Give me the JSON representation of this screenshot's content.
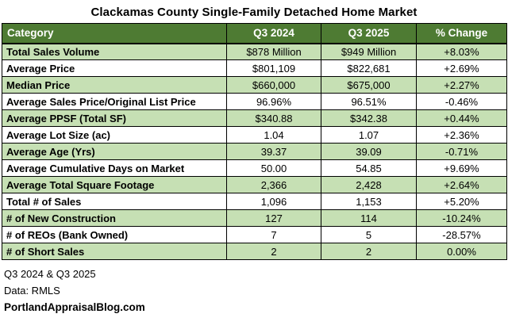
{
  "title": "Clackamas County Single-Family Detached Home Market",
  "colors": {
    "header_bg": "#4E7B33",
    "header_text": "#FFFFFF",
    "row_alt_bg": "#C6E0B4",
    "row_bg": "#FFFFFF",
    "border": "#000000"
  },
  "table": {
    "headers": [
      "Category",
      "Q3 2024",
      "Q3 2025",
      "% Change"
    ],
    "rows": [
      {
        "category": "Total Sales Volume",
        "q3_2024": "$878 Million",
        "q3_2025": "$949 Million",
        "change": "+8.03%"
      },
      {
        "category": "Average Price",
        "q3_2024": "$801,109",
        "q3_2025": "$822,681",
        "change": "+2.69%"
      },
      {
        "category": "Median Price",
        "q3_2024": "$660,000",
        "q3_2025": "$675,000",
        "change": "+2.27%"
      },
      {
        "category": "Average Sales Price/Original List Price",
        "q3_2024": "96.96%",
        "q3_2025": "96.51%",
        "change": "-0.46%"
      },
      {
        "category": "Average PPSF (Total SF)",
        "q3_2024": "$340.88",
        "q3_2025": "$342.38",
        "change": "+0.44%"
      },
      {
        "category": "Average Lot Size (ac)",
        "q3_2024": "1.04",
        "q3_2025": "1.07",
        "change": "+2.36%"
      },
      {
        "category": "Average Age (Yrs)",
        "q3_2024": "39.37",
        "q3_2025": "39.09",
        "change": "-0.71%"
      },
      {
        "category": "Average Cumulative Days on Market",
        "q3_2024": "50.00",
        "q3_2025": "54.85",
        "change": "+9.69%"
      },
      {
        "category": "Average Total Square Footage",
        "q3_2024": "2,366",
        "q3_2025": "2,428",
        "change": "+2.64%"
      },
      {
        "category": "Total # of Sales",
        "q3_2024": "1,096",
        "q3_2025": "1,153",
        "change": "+5.20%"
      },
      {
        "category": "# of New Construction",
        "q3_2024": "127",
        "q3_2025": "114",
        "change": "-10.24%"
      },
      {
        "category": "# of REOs (Bank Owned)",
        "q3_2024": "7",
        "q3_2025": "5",
        "change": "-28.57%"
      },
      {
        "category": "# of Short Sales",
        "q3_2024": "2",
        "q3_2025": "2",
        "change": "0.00%"
      }
    ]
  },
  "footer": {
    "line1": "Q3 2024 & Q3 2025",
    "line2": "Data: RMLS",
    "line3": "PortlandAppraisalBlog.com"
  },
  "chart_data": {
    "type": "table",
    "title": "Clackamas County Single-Family Detached Home Market",
    "columns": [
      "Category",
      "Q3 2024",
      "Q3 2025",
      "% Change"
    ],
    "rows": [
      [
        "Total Sales Volume",
        "$878 Million",
        "$949 Million",
        "+8.03%"
      ],
      [
        "Average Price",
        "$801,109",
        "$822,681",
        "+2.69%"
      ],
      [
        "Median Price",
        "$660,000",
        "$675,000",
        "+2.27%"
      ],
      [
        "Average Sales Price/Original List Price",
        "96.96%",
        "96.51%",
        "-0.46%"
      ],
      [
        "Average PPSF (Total SF)",
        "$340.88",
        "$342.38",
        "+0.44%"
      ],
      [
        "Average Lot Size (ac)",
        "1.04",
        "1.07",
        "+2.36%"
      ],
      [
        "Average Age (Yrs)",
        "39.37",
        "39.09",
        "-0.71%"
      ],
      [
        "Average Cumulative Days on Market",
        "50.00",
        "54.85",
        "+9.69%"
      ],
      [
        "Average Total Square Footage",
        "2,366",
        "2,428",
        "+2.64%"
      ],
      [
        "Total # of Sales",
        "1,096",
        "1,153",
        "+5.20%"
      ],
      [
        "# of New Construction",
        "127",
        "114",
        "-10.24%"
      ],
      [
        "# of REOs (Bank Owned)",
        "7",
        "5",
        "-28.57%"
      ],
      [
        "# of Short Sales",
        "2",
        "2",
        "0.00%"
      ]
    ],
    "notes": [
      "Q3 2024 & Q3 2025",
      "Data: RMLS",
      "PortlandAppraisalBlog.com"
    ],
    "source": "RMLS"
  }
}
